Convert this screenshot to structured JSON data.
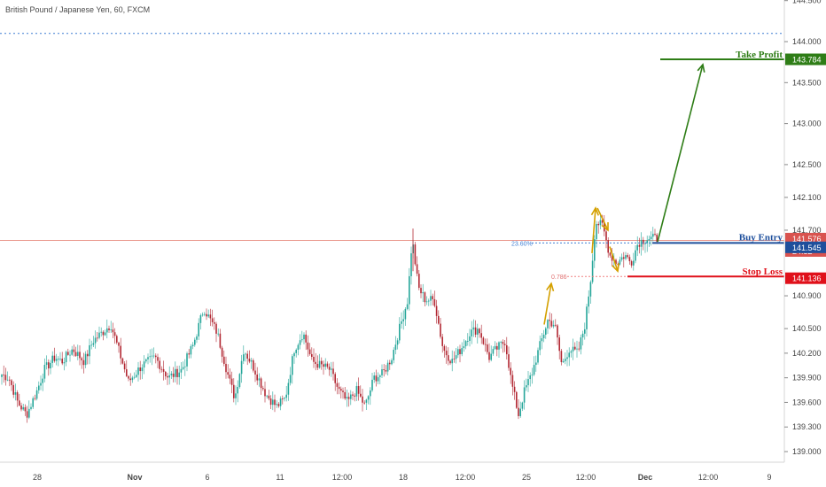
{
  "header": {
    "title": "British Pound / Japanese Yen, 60, FXCM"
  },
  "annotations": {
    "take_profit": "Take Profit",
    "buy_entry": "Buy Entry",
    "stop_loss": "Stop Loss",
    "fib_23": "23.60%",
    "fib_786": "0.786"
  },
  "badges": {
    "take_profit": "143.784",
    "current_price": "141.576",
    "countdown": "24:32",
    "buy_entry": "141.545",
    "stop_loss": "141.136"
  },
  "colors": {
    "up": "#26a69a",
    "down": "#b22833",
    "take_profit": "#2e7d16",
    "buy_entry": "#1e4f9c",
    "stop_loss": "#e0101a",
    "arrow_gold": "#d4a000",
    "price_line": "#e06a5a",
    "dotted_blue": "#3f7fd4"
  },
  "chart_data": {
    "type": "candlestick",
    "title": "British Pound / Japanese Yen, 60, FXCM",
    "ylim": [
      138.85,
      144.55
    ],
    "y_ticks": [
      "144.500",
      "144.000",
      "143.500",
      "143.000",
      "142.500",
      "142.100",
      "141.700",
      "140.900",
      "140.500",
      "140.200",
      "139.900",
      "139.600",
      "139.300",
      "139.000"
    ],
    "x_ticks": [
      "28",
      "Nov",
      "6",
      "11",
      "12:00",
      "18",
      "12:00",
      "25",
      "12:00",
      "Dec",
      "12:00",
      "9"
    ],
    "series": [
      {
        "name": "",
        "anchors": [
          [
            0,
            139.95
          ],
          [
            10,
            139.9
          ],
          [
            20,
            139.6
          ],
          [
            30,
            139.45
          ],
          [
            42,
            139.75
          ],
          [
            50,
            140.0
          ],
          [
            62,
            140.15
          ],
          [
            70,
            140.1
          ],
          [
            82,
            140.25
          ],
          [
            95,
            140.1
          ],
          [
            105,
            140.35
          ],
          [
            115,
            140.45
          ],
          [
            125,
            140.55
          ],
          [
            135,
            140.2
          ],
          [
            145,
            139.85
          ],
          [
            160,
            140.05
          ],
          [
            175,
            140.15
          ],
          [
            190,
            139.9
          ],
          [
            205,
            140.0
          ],
          [
            218,
            140.3
          ],
          [
            230,
            140.75
          ],
          [
            245,
            140.45
          ],
          [
            258,
            139.9
          ],
          [
            265,
            139.65
          ],
          [
            275,
            140.25
          ],
          [
            285,
            140.05
          ],
          [
            300,
            139.7
          ],
          [
            312,
            139.55
          ],
          [
            322,
            139.65
          ],
          [
            332,
            140.25
          ],
          [
            342,
            140.45
          ],
          [
            352,
            140.1
          ],
          [
            362,
            140.05
          ],
          [
            372,
            140.0
          ],
          [
            382,
            139.75
          ],
          [
            392,
            139.6
          ],
          [
            402,
            139.75
          ],
          [
            412,
            139.55
          ],
          [
            422,
            139.9
          ],
          [
            432,
            139.95
          ],
          [
            442,
            140.15
          ],
          [
            452,
            140.55
          ],
          [
            460,
            140.85
          ],
          [
            465,
            141.6
          ],
          [
            472,
            141.0
          ],
          [
            480,
            140.85
          ],
          [
            490,
            140.85
          ],
          [
            500,
            140.25
          ],
          [
            510,
            140.1
          ],
          [
            520,
            140.25
          ],
          [
            530,
            140.45
          ],
          [
            540,
            140.5
          ],
          [
            552,
            140.15
          ],
          [
            560,
            140.25
          ],
          [
            570,
            140.35
          ],
          [
            577,
            139.85
          ],
          [
            585,
            139.45
          ],
          [
            592,
            139.75
          ],
          [
            600,
            139.95
          ],
          [
            608,
            140.25
          ],
          [
            618,
            140.6
          ],
          [
            626,
            140.55
          ],
          [
            634,
            140.05
          ],
          [
            642,
            140.25
          ],
          [
            652,
            140.2
          ],
          [
            660,
            140.55
          ],
          [
            667,
            141.15
          ],
          [
            672,
            141.8
          ],
          [
            680,
            141.75
          ],
          [
            688,
            141.4
          ],
          [
            696,
            141.3
          ],
          [
            705,
            141.4
          ],
          [
            712,
            141.3
          ],
          [
            720,
            141.55
          ],
          [
            730,
            141.6
          ],
          [
            742,
            141.6
          ]
        ]
      }
    ],
    "levels": [
      {
        "label": "Take Profit",
        "value": 143.784
      },
      {
        "label": "Buy Entry",
        "value": 141.545
      },
      {
        "label": "Stop Loss",
        "value": 141.136
      }
    ],
    "fibonacci": [
      {
        "label": "23.60%",
        "value": 141.545
      },
      {
        "label": "0.786",
        "value": 141.136
      }
    ],
    "current_price": 141.576,
    "grid": false
  }
}
